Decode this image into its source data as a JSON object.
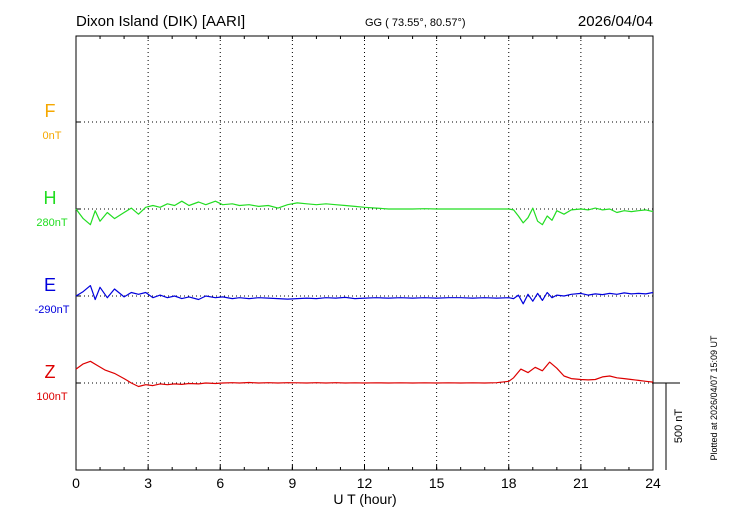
{
  "header": {
    "station": "Dixon Island (DIK)  [AARI]",
    "coords": "GG ( 73.55°,  80.57°)",
    "date": "2026/04/04"
  },
  "footer": {
    "plotted": "Plotted at 2026/04/07 15:09 UT"
  },
  "chart_data": {
    "type": "line",
    "xlabel": "U T (hour)",
    "xlim": [
      0,
      24
    ],
    "xticks": [
      "0",
      "3",
      "6",
      "9",
      "12",
      "15",
      "18",
      "21",
      "24"
    ],
    "grid": true,
    "scale_bar": {
      "label": "500 nT",
      "value": 500
    },
    "panel_spacing_nT": 350,
    "series": [
      {
        "name": "F",
        "offset_label": "0nT",
        "color": "#f5a800",
        "points": []
      },
      {
        "name": "H",
        "offset_label": "280nT",
        "color": "#22dd22",
        "points": [
          [
            0.0,
            0
          ],
          [
            0.3,
            -55
          ],
          [
            0.6,
            -90
          ],
          [
            0.8,
            -10
          ],
          [
            1.0,
            -70
          ],
          [
            1.3,
            -20
          ],
          [
            1.6,
            -55
          ],
          [
            2.0,
            -20
          ],
          [
            2.3,
            5
          ],
          [
            2.6,
            -30
          ],
          [
            2.9,
            10
          ],
          [
            3.2,
            20
          ],
          [
            3.5,
            10
          ],
          [
            3.8,
            30
          ],
          [
            4.1,
            20
          ],
          [
            4.4,
            45
          ],
          [
            4.7,
            20
          ],
          [
            5.1,
            40
          ],
          [
            5.4,
            25
          ],
          [
            5.8,
            45
          ],
          [
            6.1,
            25
          ],
          [
            6.5,
            30
          ],
          [
            6.8,
            20
          ],
          [
            7.2,
            25
          ],
          [
            7.6,
            15
          ],
          [
            8.0,
            20
          ],
          [
            8.4,
            5
          ],
          [
            8.8,
            25
          ],
          [
            9.2,
            35
          ],
          [
            9.6,
            30
          ],
          [
            10.0,
            25
          ],
          [
            10.4,
            30
          ],
          [
            10.8,
            25
          ],
          [
            11.2,
            20
          ],
          [
            11.6,
            15
          ],
          [
            12.0,
            10
          ],
          [
            12.5,
            5
          ],
          [
            13.0,
            0
          ],
          [
            13.5,
            0
          ],
          [
            14.0,
            0
          ],
          [
            14.5,
            2
          ],
          [
            15.0,
            0
          ],
          [
            15.5,
            0
          ],
          [
            16.0,
            0
          ],
          [
            16.5,
            0
          ],
          [
            17.0,
            0
          ],
          [
            17.5,
            0
          ],
          [
            18.0,
            0
          ],
          [
            18.2,
            -5
          ],
          [
            18.4,
            -40
          ],
          [
            18.6,
            -80
          ],
          [
            18.8,
            -50
          ],
          [
            19.0,
            5
          ],
          [
            19.2,
            -70
          ],
          [
            19.4,
            -90
          ],
          [
            19.6,
            -40
          ],
          [
            19.8,
            -65
          ],
          [
            20.0,
            -10
          ],
          [
            20.3,
            -30
          ],
          [
            20.6,
            -5
          ],
          [
            21.0,
            0
          ],
          [
            21.3,
            -5
          ],
          [
            21.6,
            5
          ],
          [
            21.9,
            -5
          ],
          [
            22.2,
            0
          ],
          [
            22.5,
            -20
          ],
          [
            22.8,
            -10
          ],
          [
            23.1,
            -15
          ],
          [
            23.4,
            -10
          ],
          [
            23.7,
            -5
          ],
          [
            24.0,
            -15
          ]
        ]
      },
      {
        "name": "E",
        "offset_label": "-290nT",
        "color": "#0000dd",
        "points": [
          [
            0.0,
            0
          ],
          [
            0.3,
            25
          ],
          [
            0.6,
            60
          ],
          [
            0.8,
            -20
          ],
          [
            1.0,
            50
          ],
          [
            1.3,
            -10
          ],
          [
            1.6,
            40
          ],
          [
            2.0,
            -5
          ],
          [
            2.3,
            20
          ],
          [
            2.6,
            10
          ],
          [
            2.9,
            20
          ],
          [
            3.2,
            -10
          ],
          [
            3.5,
            5
          ],
          [
            3.8,
            -10
          ],
          [
            4.1,
            0
          ],
          [
            4.4,
            -15
          ],
          [
            4.7,
            -5
          ],
          [
            5.1,
            -20
          ],
          [
            5.4,
            0
          ],
          [
            5.8,
            -10
          ],
          [
            6.1,
            -5
          ],
          [
            6.5,
            -15
          ],
          [
            6.8,
            -10
          ],
          [
            7.2,
            -15
          ],
          [
            7.6,
            -10
          ],
          [
            8.0,
            -12
          ],
          [
            8.4,
            -15
          ],
          [
            8.8,
            -18
          ],
          [
            9.2,
            -15
          ],
          [
            9.6,
            -12
          ],
          [
            10.0,
            -15
          ],
          [
            10.4,
            -10
          ],
          [
            10.8,
            -12
          ],
          [
            11.2,
            -8
          ],
          [
            11.6,
            -15
          ],
          [
            12.0,
            -12
          ],
          [
            12.5,
            -10
          ],
          [
            13.0,
            -12
          ],
          [
            13.5,
            -10
          ],
          [
            14.0,
            -12
          ],
          [
            14.5,
            -10
          ],
          [
            15.0,
            -12
          ],
          [
            15.5,
            -10
          ],
          [
            16.0,
            -10
          ],
          [
            16.5,
            -12
          ],
          [
            17.0,
            -10
          ],
          [
            17.5,
            -12
          ],
          [
            18.0,
            -10
          ],
          [
            18.2,
            -15
          ],
          [
            18.4,
            5
          ],
          [
            18.6,
            -45
          ],
          [
            18.8,
            10
          ],
          [
            19.0,
            -30
          ],
          [
            19.2,
            15
          ],
          [
            19.4,
            -25
          ],
          [
            19.6,
            20
          ],
          [
            19.8,
            -10
          ],
          [
            20.0,
            5
          ],
          [
            20.3,
            0
          ],
          [
            20.6,
            10
          ],
          [
            21.0,
            15
          ],
          [
            21.3,
            5
          ],
          [
            21.6,
            12
          ],
          [
            21.9,
            8
          ],
          [
            22.2,
            15
          ],
          [
            22.5,
            10
          ],
          [
            22.8,
            18
          ],
          [
            23.1,
            12
          ],
          [
            23.4,
            15
          ],
          [
            23.7,
            12
          ],
          [
            24.0,
            20
          ]
        ]
      },
      {
        "name": "Z",
        "offset_label": "100nT",
        "color": "#dd0000",
        "points": [
          [
            0.0,
            80
          ],
          [
            0.3,
            110
          ],
          [
            0.6,
            125
          ],
          [
            0.9,
            100
          ],
          [
            1.2,
            75
          ],
          [
            1.6,
            55
          ],
          [
            2.0,
            25
          ],
          [
            2.3,
            0
          ],
          [
            2.6,
            -20
          ],
          [
            2.9,
            -10
          ],
          [
            3.2,
            -15
          ],
          [
            3.5,
            -5
          ],
          [
            3.8,
            -10
          ],
          [
            4.1,
            -5
          ],
          [
            4.4,
            -8
          ],
          [
            4.7,
            -3
          ],
          [
            5.1,
            -5
          ],
          [
            5.4,
            0
          ],
          [
            5.8,
            -3
          ],
          [
            6.1,
            0
          ],
          [
            6.5,
            2
          ],
          [
            6.8,
            0
          ],
          [
            7.2,
            3
          ],
          [
            7.6,
            0
          ],
          [
            8.0,
            2
          ],
          [
            8.4,
            0
          ],
          [
            8.8,
            2
          ],
          [
            9.2,
            1
          ],
          [
            9.6,
            0
          ],
          [
            10.0,
            2
          ],
          [
            10.4,
            0
          ],
          [
            10.8,
            2
          ],
          [
            11.2,
            0
          ],
          [
            11.6,
            1
          ],
          [
            12.0,
            0
          ],
          [
            12.5,
            1
          ],
          [
            13.0,
            0
          ],
          [
            13.5,
            1
          ],
          [
            14.0,
            0
          ],
          [
            14.5,
            1
          ],
          [
            15.0,
            0
          ],
          [
            15.5,
            1
          ],
          [
            16.0,
            0
          ],
          [
            16.5,
            1
          ],
          [
            17.0,
            0
          ],
          [
            17.5,
            2
          ],
          [
            18.0,
            10
          ],
          [
            18.2,
            30
          ],
          [
            18.5,
            80
          ],
          [
            18.8,
            60
          ],
          [
            19.1,
            90
          ],
          [
            19.4,
            70
          ],
          [
            19.7,
            120
          ],
          [
            20.0,
            85
          ],
          [
            20.3,
            40
          ],
          [
            20.6,
            25
          ],
          [
            21.0,
            20
          ],
          [
            21.3,
            18
          ],
          [
            21.6,
            20
          ],
          [
            21.9,
            35
          ],
          [
            22.2,
            40
          ],
          [
            22.5,
            30
          ],
          [
            22.8,
            25
          ],
          [
            23.1,
            20
          ],
          [
            23.4,
            15
          ],
          [
            23.7,
            10
          ],
          [
            24.0,
            5
          ]
        ]
      }
    ]
  }
}
